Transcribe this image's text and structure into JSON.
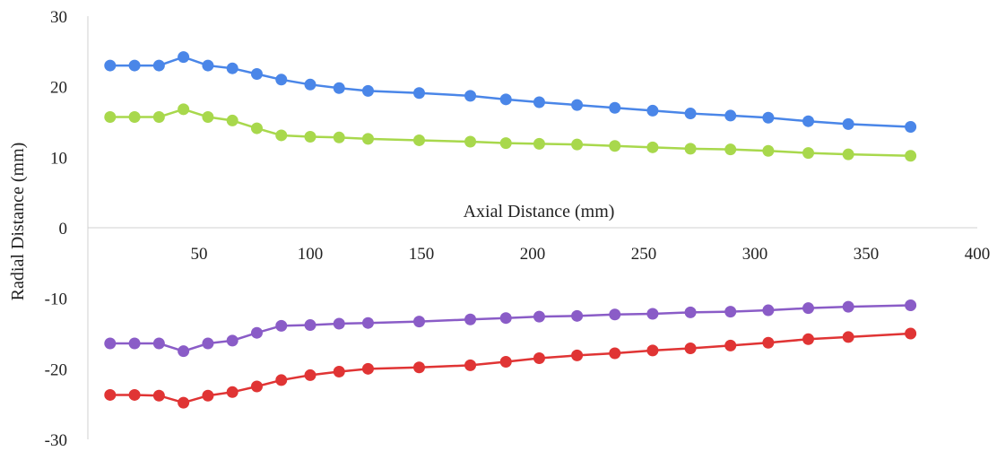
{
  "chart_data": {
    "type": "line",
    "xlabel": "Axial Distance (mm)",
    "ylabel": "Radial Distance (mm)",
    "xlim": [
      0,
      400
    ],
    "ylim": [
      -30,
      30
    ],
    "x_ticks": [
      50,
      100,
      150,
      200,
      250,
      300,
      350,
      400
    ],
    "y_ticks": [
      30,
      20,
      10,
      0,
      -10,
      -20,
      -30
    ],
    "grid": false,
    "legend": "none",
    "x": [
      10,
      21,
      32,
      43,
      54,
      65,
      76,
      87,
      100,
      113,
      126,
      149,
      172,
      188,
      203,
      220,
      237,
      254,
      271,
      289,
      306,
      324,
      342,
      370
    ],
    "series": [
      {
        "color": "#4a86e8",
        "values": [
          23.0,
          23.0,
          23.0,
          24.2,
          23.0,
          22.6,
          21.8,
          21.0,
          20.3,
          19.8,
          19.4,
          19.1,
          18.7,
          18.2,
          17.8,
          17.4,
          17.0,
          16.6,
          16.2,
          15.9,
          15.6,
          15.1,
          14.7,
          14.3
        ]
      },
      {
        "color": "#a8d84c",
        "values": [
          15.7,
          15.7,
          15.7,
          16.8,
          15.7,
          15.2,
          14.1,
          13.1,
          12.9,
          12.8,
          12.6,
          12.4,
          12.2,
          12.0,
          11.9,
          11.8,
          11.6,
          11.4,
          11.2,
          11.1,
          10.9,
          10.6,
          10.4,
          10.2
        ]
      },
      {
        "color": "#8a5cc7",
        "values": [
          -16.4,
          -16.4,
          -16.4,
          -17.5,
          -16.4,
          -16.0,
          -14.9,
          -13.9,
          -13.8,
          -13.6,
          -13.5,
          -13.3,
          -13.0,
          -12.8,
          -12.6,
          -12.5,
          -12.3,
          -12.2,
          -12.0,
          -11.9,
          -11.7,
          -11.4,
          -11.2,
          -11.0
        ]
      },
      {
        "color": "#e03434",
        "values": [
          -23.7,
          -23.7,
          -23.8,
          -24.8,
          -23.8,
          -23.3,
          -22.5,
          -21.6,
          -20.9,
          -20.4,
          -20.0,
          -19.8,
          -19.5,
          -19.0,
          -18.5,
          -18.1,
          -17.8,
          -17.4,
          -17.1,
          -16.7,
          -16.3,
          -15.8,
          -15.5,
          -15.0
        ]
      }
    ]
  }
}
